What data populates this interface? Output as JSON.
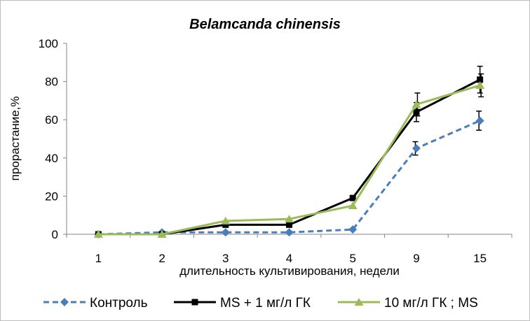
{
  "chart_data": {
    "type": "line",
    "title": "Belamcanda chinensis",
    "xlabel": "длительность культивирования, недели",
    "ylabel": "прорастание,%",
    "categories": [
      "1",
      "2",
      "3",
      "4",
      "5",
      "9",
      "15"
    ],
    "ylim": [
      0,
      100
    ],
    "yticks": [
      0,
      20,
      40,
      60,
      80,
      100
    ],
    "grid": false,
    "legend_position": "bottom",
    "series": [
      {
        "name": "Контроль",
        "color": "#4a7ebb",
        "line_style": "dashed",
        "marker": "diamond",
        "values": [
          0,
          1,
          1,
          1,
          2.5,
          45,
          59.5
        ],
        "errors": [
          0,
          0,
          0,
          0,
          0,
          3.5,
          5
        ]
      },
      {
        "name": "MS + 1 мг/л ГК",
        "color": "#000000",
        "line_style": "solid",
        "marker": "square",
        "values": [
          0,
          0,
          5,
          5,
          19,
          64,
          81
        ],
        "errors": [
          0,
          0,
          0,
          0,
          0,
          5,
          7
        ]
      },
      {
        "name": "10 мг/л ГК ; MS",
        "color": "#9bbb59",
        "line_style": "solid",
        "marker": "triangle",
        "values": [
          0,
          0,
          7,
          8,
          15,
          68,
          78
        ],
        "errors": [
          0,
          0,
          0,
          0,
          0,
          6,
          6
        ]
      }
    ]
  }
}
